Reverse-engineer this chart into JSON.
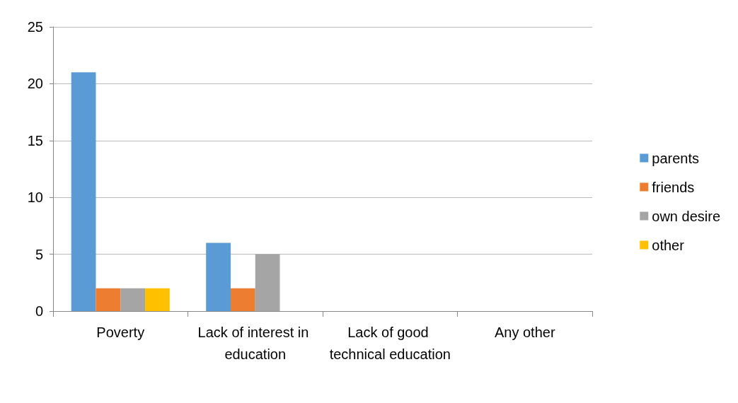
{
  "chart_data": {
    "type": "bar",
    "categories": [
      "Poverty",
      "Lack of interest in education",
      "Lack of good technical education",
      "Any other"
    ],
    "series": [
      {
        "name": "parents",
        "color": "#5b9bd5",
        "values": [
          21,
          6,
          0,
          0
        ]
      },
      {
        "name": "friends",
        "color": "#ed7d31",
        "values": [
          2,
          2,
          0,
          0
        ]
      },
      {
        "name": "own desire",
        "color": "#a5a5a5",
        "values": [
          2,
          5,
          0,
          0
        ]
      },
      {
        "name": "other",
        "color": "#ffc000",
        "values": [
          2,
          0,
          0,
          0
        ]
      }
    ],
    "ylim": [
      0,
      25
    ],
    "yticks": [
      0,
      5,
      10,
      15,
      20,
      25
    ],
    "grid": "y",
    "legend": "right"
  }
}
